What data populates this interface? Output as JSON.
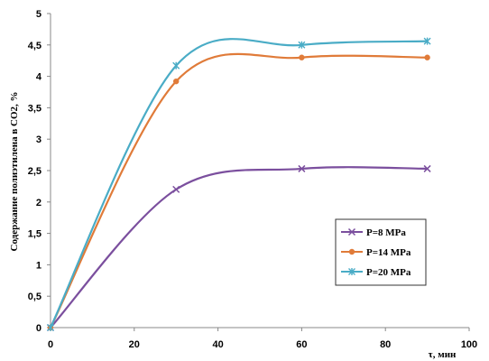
{
  "chart_data": {
    "type": "line",
    "title": "",
    "xlabel": "τ, мин",
    "ylabel": "Содержание полиэтилена в СО2, %",
    "xlim": [
      0,
      100
    ],
    "ylim": [
      0,
      5
    ],
    "x_ticks": [
      "0",
      "20",
      "40",
      "60",
      "80",
      "100"
    ],
    "y_ticks": [
      "0",
      "0,5",
      "1",
      "1,5",
      "2",
      "2,5",
      "3",
      "3,5",
      "4",
      "4,5",
      "5"
    ],
    "grid": false,
    "legend_position": "lower-right",
    "series": [
      {
        "name": "P=8 MPa",
        "color": "#7b4f9e",
        "marker": "x",
        "x": [
          0,
          30,
          60,
          90
        ],
        "y": [
          0,
          2.2,
          2.53,
          2.53
        ]
      },
      {
        "name": "P=14 MPa",
        "color": "#e07b39",
        "marker": "circle",
        "x": [
          0,
          30,
          60,
          90
        ],
        "y": [
          0,
          3.92,
          4.3,
          4.3
        ]
      },
      {
        "name": "P=20 MPa",
        "color": "#4aacc6",
        "marker": "star",
        "x": [
          0,
          30,
          60,
          90
        ],
        "y": [
          0,
          4.17,
          4.5,
          4.56
        ]
      }
    ]
  }
}
